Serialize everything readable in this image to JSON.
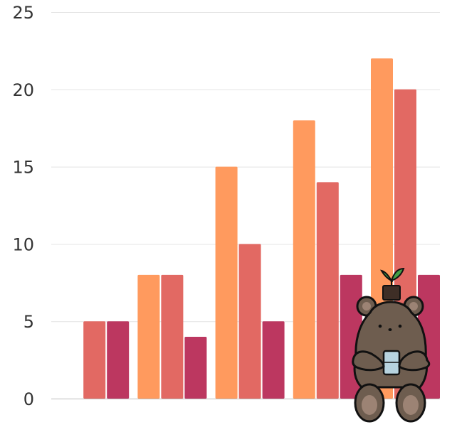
{
  "chart_data": {
    "type": "bar",
    "categories": [
      "",
      "",
      "",
      "",
      ""
    ],
    "series": [
      {
        "values": [
          0,
          8,
          15,
          18,
          22
        ],
        "color": "#FF9A5E"
      },
      {
        "values": [
          5,
          8,
          10,
          14,
          20
        ],
        "color": "#E26963"
      },
      {
        "values": [
          5,
          4,
          5,
          8,
          8
        ],
        "color": "#BC3760"
      }
    ],
    "y_ticks": [
      "0",
      "5",
      "10",
      "15",
      "20",
      "25"
    ],
    "ylim": [
      0,
      25
    ],
    "grid": true,
    "legend": "none"
  },
  "decoration": {
    "mascot": "bear-holding-cup-with-sprout-icon"
  }
}
